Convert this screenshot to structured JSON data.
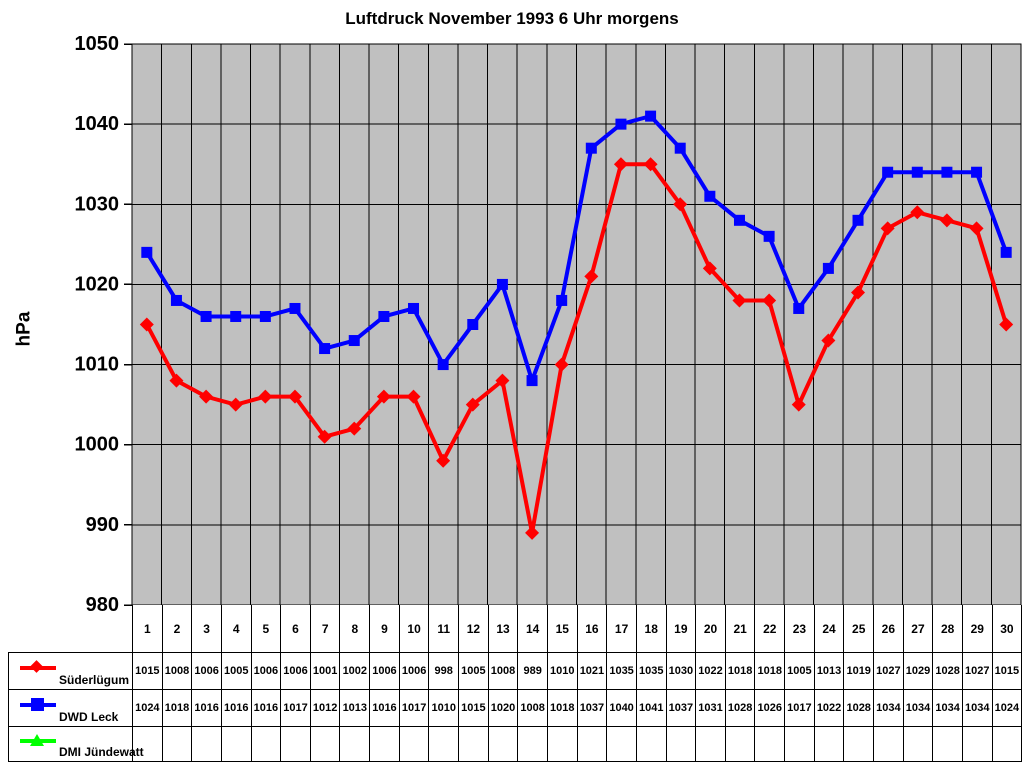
{
  "chart_data": {
    "type": "line",
    "title": "Luftdruck November 1993 6 Uhr morgens",
    "ylabel": "hPa",
    "ylim": [
      980,
      1050
    ],
    "yticks": [
      980,
      990,
      1000,
      1010,
      1020,
      1030,
      1040,
      1050
    ],
    "categories": [
      "1",
      "2",
      "3",
      "4",
      "5",
      "6",
      "7",
      "8",
      "9",
      "10",
      "11",
      "12",
      "13",
      "14",
      "15",
      "16",
      "17",
      "18",
      "19",
      "20",
      "21",
      "22",
      "23",
      "24",
      "25",
      "26",
      "27",
      "28",
      "29",
      "30"
    ],
    "grid": "both",
    "legend_position": "bottom-table",
    "plot_bg": "#c0c0c0",
    "grid_color": "#000000",
    "series": [
      {
        "name": "Süderlügum",
        "color": "#ff0000",
        "marker": "diamond",
        "values": [
          1015,
          1008,
          1006,
          1005,
          1006,
          1006,
          1001,
          1002,
          1006,
          1006,
          998,
          1005,
          1008,
          989,
          1010,
          1021,
          1035,
          1035,
          1030,
          1022,
          1018,
          1018,
          1005,
          1013,
          1019,
          1027,
          1029,
          1028,
          1027,
          1015
        ]
      },
      {
        "name": "DWD Leck",
        "color": "#0000ff",
        "marker": "square",
        "values": [
          1024,
          1018,
          1016,
          1016,
          1016,
          1017,
          1012,
          1013,
          1016,
          1017,
          1010,
          1015,
          1020,
          1008,
          1018,
          1037,
          1040,
          1041,
          1037,
          1031,
          1028,
          1026,
          1017,
          1022,
          1028,
          1034,
          1034,
          1034,
          1034,
          1024
        ]
      },
      {
        "name": "DMI Jündewatt",
        "color": "#00ff00",
        "marker": "triangle",
        "values": []
      }
    ]
  }
}
